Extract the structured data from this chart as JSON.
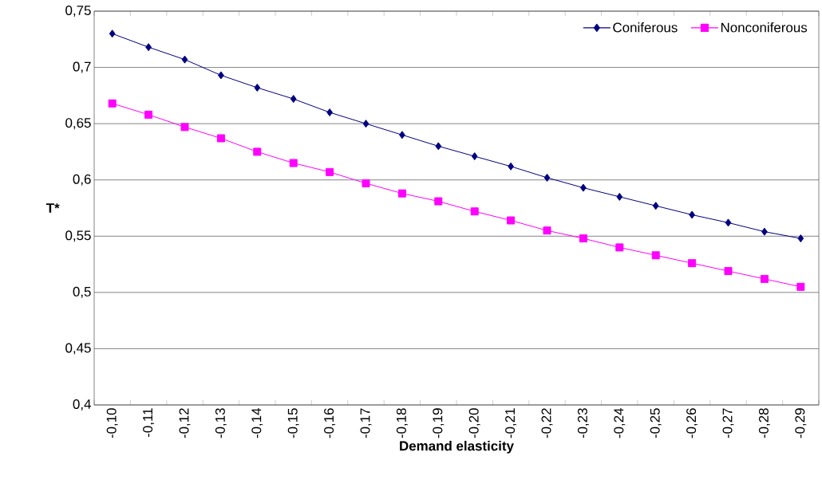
{
  "chart_data": {
    "type": "line",
    "xlabel": "Demand elasticity",
    "ylabel": "T*",
    "categories": [
      "-0,10",
      "-0,11",
      "-0,12",
      "-0,13",
      "-0,14",
      "-0,15",
      "-0,16",
      "-0,17",
      "-0,18",
      "-0,19",
      "-0,20",
      "-0,21",
      "-0,22",
      "-0,23",
      "-0,24",
      "-0,25",
      "-0,26",
      "-0,27",
      "-0,28",
      "-0,29"
    ],
    "series": [
      {
        "name": "Coniferous",
        "color": "#000080",
        "marker": "diamond",
        "values": [
          0.73,
          0.718,
          0.707,
          0.693,
          0.682,
          0.672,
          0.66,
          0.65,
          0.64,
          0.63,
          0.621,
          0.612,
          0.602,
          0.593,
          0.585,
          0.577,
          0.569,
          0.562,
          0.554,
          0.548
        ]
      },
      {
        "name": "Nonconiferous",
        "color": "#ff00ff",
        "marker": "square",
        "values": [
          0.668,
          0.658,
          0.647,
          0.637,
          0.625,
          0.615,
          0.607,
          0.597,
          0.588,
          0.581,
          0.572,
          0.564,
          0.555,
          0.548,
          0.54,
          0.533,
          0.526,
          0.519,
          0.512,
          0.505
        ]
      }
    ],
    "ylim": [
      0.4,
      0.75
    ],
    "yticks": [
      {
        "value": 0.4,
        "label": "0,4"
      },
      {
        "value": 0.45,
        "label": "0,45"
      },
      {
        "value": 0.5,
        "label": "0,5"
      },
      {
        "value": 0.55,
        "label": "0,55"
      },
      {
        "value": 0.6,
        "label": "0,6"
      },
      {
        "value": 0.65,
        "label": "0,65"
      },
      {
        "value": 0.7,
        "label": "0,7"
      },
      {
        "value": 0.75,
        "label": "0,75"
      }
    ],
    "grid": "y",
    "legend": "top right",
    "line_style": "solid"
  }
}
